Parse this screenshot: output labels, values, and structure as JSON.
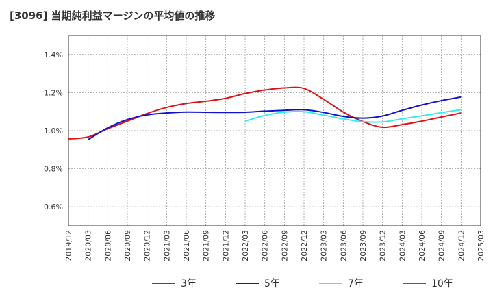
{
  "chart_data": {
    "type": "line",
    "title": "[3096]  当期純利益マージンの平均値の推移",
    "y_ticks": [
      "0.6%",
      "0.8%",
      "1.0%",
      "1.2%",
      "1.4%"
    ],
    "y_tick_values": [
      0.6,
      0.8,
      1.0,
      1.2,
      1.4
    ],
    "ylim": [
      0.5,
      1.5
    ],
    "x_ticks": [
      "2019/12",
      "2020/03",
      "2020/06",
      "2020/09",
      "2020/12",
      "2021/03",
      "2021/06",
      "2021/09",
      "2021/12",
      "2022/03",
      "2022/06",
      "2022/09",
      "2022/12",
      "2023/03",
      "2023/06",
      "2023/09",
      "2023/12",
      "2024/03",
      "2024/06",
      "2024/09",
      "2024/12",
      "2025/03"
    ],
    "grid": true,
    "legend_position": "bottom",
    "series": [
      {
        "name": "3年",
        "color": "#dd1111",
        "x": [
          "2019/12",
          "2020/03",
          "2020/06",
          "2020/09",
          "2020/12",
          "2021/03",
          "2021/06",
          "2021/09",
          "2021/12",
          "2022/03",
          "2022/06",
          "2022/09",
          "2022/12",
          "2023/03",
          "2023/06",
          "2023/09",
          "2023/12",
          "2024/03",
          "2024/06",
          "2024/09",
          "2024/12"
        ],
        "values": [
          0.957,
          0.967,
          1.01,
          1.05,
          1.09,
          1.122,
          1.143,
          1.155,
          1.17,
          1.195,
          1.214,
          1.225,
          1.222,
          1.165,
          1.098,
          1.048,
          1.018,
          1.032,
          1.05,
          1.072,
          1.093
        ]
      },
      {
        "name": "5年",
        "color": "#1111cc",
        "x": [
          "2020/03",
          "2020/06",
          "2020/09",
          "2020/12",
          "2021/03",
          "2021/06",
          "2021/09",
          "2021/12",
          "2022/03",
          "2022/06",
          "2022/09",
          "2022/12",
          "2023/03",
          "2023/06",
          "2023/09",
          "2023/12",
          "2024/03",
          "2024/06",
          "2024/09",
          "2024/12"
        ],
        "values": [
          0.953,
          1.015,
          1.058,
          1.083,
          1.093,
          1.098,
          1.097,
          1.096,
          1.097,
          1.103,
          1.107,
          1.11,
          1.096,
          1.075,
          1.066,
          1.077,
          1.107,
          1.135,
          1.158,
          1.177
        ]
      },
      {
        "name": "7年",
        "color": "#33eeee",
        "x": [
          "2022/03",
          "2022/06",
          "2022/09",
          "2022/12",
          "2023/03",
          "2023/06",
          "2023/09",
          "2023/12",
          "2024/03",
          "2024/06",
          "2024/09",
          "2024/12"
        ],
        "values": [
          1.05,
          1.08,
          1.097,
          1.1,
          1.082,
          1.062,
          1.047,
          1.046,
          1.062,
          1.078,
          1.095,
          1.11
        ]
      },
      {
        "name": "10年",
        "color": "#228822",
        "x": [],
        "values": []
      }
    ]
  }
}
